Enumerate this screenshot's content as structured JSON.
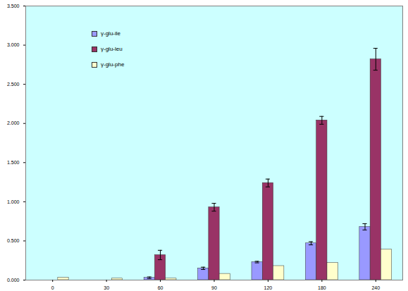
{
  "chart_data": {
    "type": "bar",
    "categories": [
      "0",
      "30",
      "60",
      "90",
      "120",
      "180",
      "240"
    ],
    "series": [
      {
        "name": "γ-glu-ile",
        "color": "#9999ff",
        "values": [
          0,
          0,
          0.03,
          0.15,
          0.23,
          0.47,
          0.68
        ],
        "errors": [
          0,
          0,
          0.01,
          0.015,
          0.01,
          0.02,
          0.04
        ]
      },
      {
        "name": "γ-glu-leu",
        "color": "#993366",
        "values": [
          0,
          0,
          0.32,
          0.93,
          1.24,
          2.04,
          2.82
        ],
        "errors": [
          0,
          0,
          0.06,
          0.05,
          0.05,
          0.05,
          0.14
        ]
      },
      {
        "name": "γ-glu-phe",
        "color": "#ffffcc",
        "values": [
          0.03,
          0.02,
          0.02,
          0.08,
          0.18,
          0.22,
          0.39
        ]
      }
    ],
    "ylim": [
      0,
      3.5
    ],
    "yticks": [
      {
        "value": 0,
        "label": "0.000"
      },
      {
        "value": 0.5,
        "label": "0.500"
      },
      {
        "value": 1,
        "label": "1.000"
      },
      {
        "value": 1.5,
        "label": "1.500"
      },
      {
        "value": 2,
        "label": "2.000"
      },
      {
        "value": 2.5,
        "label": "2.500"
      },
      {
        "value": 3,
        "label": "3.000"
      },
      {
        "value": 3.5,
        "label": "3.500"
      }
    ],
    "grid": false,
    "legend": "top-left"
  }
}
